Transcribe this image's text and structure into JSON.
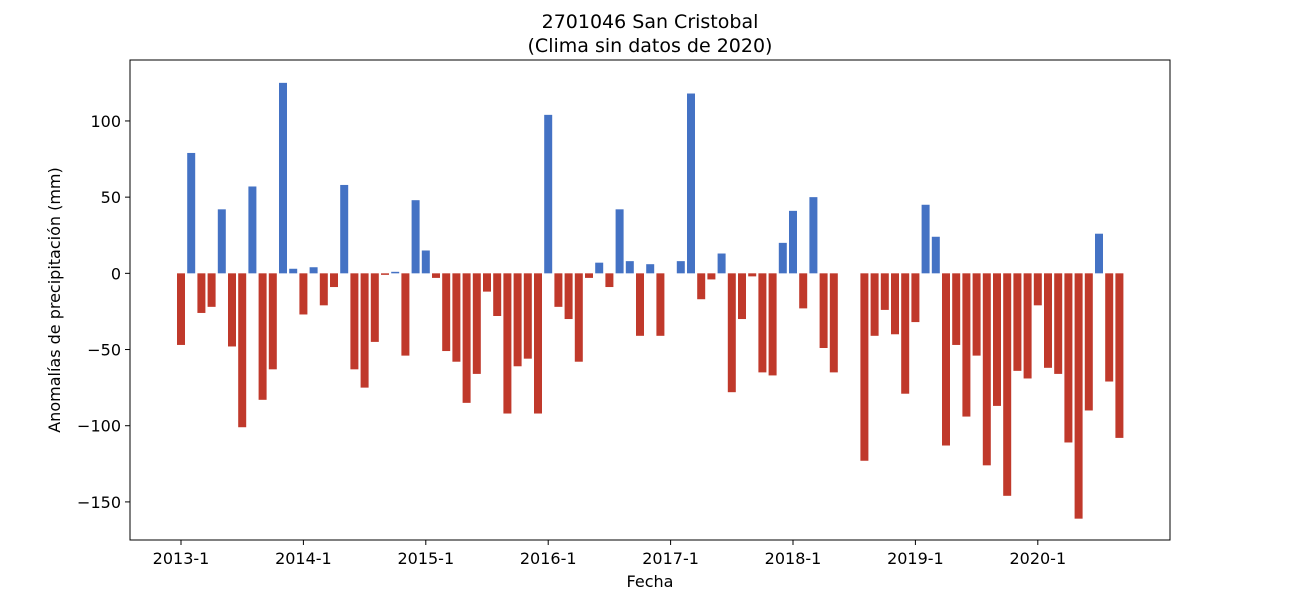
{
  "chart_data": {
    "type": "bar",
    "title": "2701046 San Cristobal",
    "subtitle": "(Clima sin datos de 2020)",
    "xlabel": "Fecha",
    "ylabel": "Anomalías de precipitación (mm)",
    "ylim": [
      -175,
      140
    ],
    "yticks": [
      100,
      50,
      0,
      -50,
      -100,
      -150
    ],
    "ytick_labels": [
      "100",
      "50",
      "0",
      "−50",
      "−100",
      "−150"
    ],
    "xticks": [
      {
        "label": "2013-1",
        "index": 0
      },
      {
        "label": "2014-1",
        "index": 12
      },
      {
        "label": "2015-1",
        "index": 24
      },
      {
        "label": "2016-1",
        "index": 36
      },
      {
        "label": "2017-1",
        "index": 48
      },
      {
        "label": "2018-1",
        "index": 60
      },
      {
        "label": "2019-1",
        "index": 72
      },
      {
        "label": "2020-1",
        "index": 84
      }
    ],
    "positive_color": "#4472c4",
    "negative_color": "#c0392b",
    "grid": false,
    "values": [
      -47,
      79,
      -26,
      -22,
      42,
      -48,
      -101,
      57,
      -83,
      -63,
      125,
      3,
      -27,
      4,
      -21,
      -9,
      58,
      -63,
      -75,
      -45,
      -1,
      1,
      -54,
      48,
      15,
      -3,
      -51,
      -58,
      -85,
      -66,
      -12,
      -28,
      -92,
      -61,
      -56,
      -92,
      104,
      -22,
      -30,
      -58,
      -3,
      7,
      -9,
      42,
      8,
      -41,
      6,
      -41,
      0,
      8,
      118,
      -17,
      -4,
      13,
      -78,
      -30,
      -2,
      -65,
      -67,
      20,
      41,
      -23,
      50,
      -49,
      -65,
      0,
      0,
      -123,
      -41,
      -24,
      -40,
      -79,
      -32,
      45,
      24,
      -113,
      -47,
      -94,
      -54,
      -126,
      -87,
      -146,
      -64,
      -69,
      -21,
      -62,
      -66,
      -111,
      -161,
      -90,
      26,
      -71,
      -108
    ]
  }
}
